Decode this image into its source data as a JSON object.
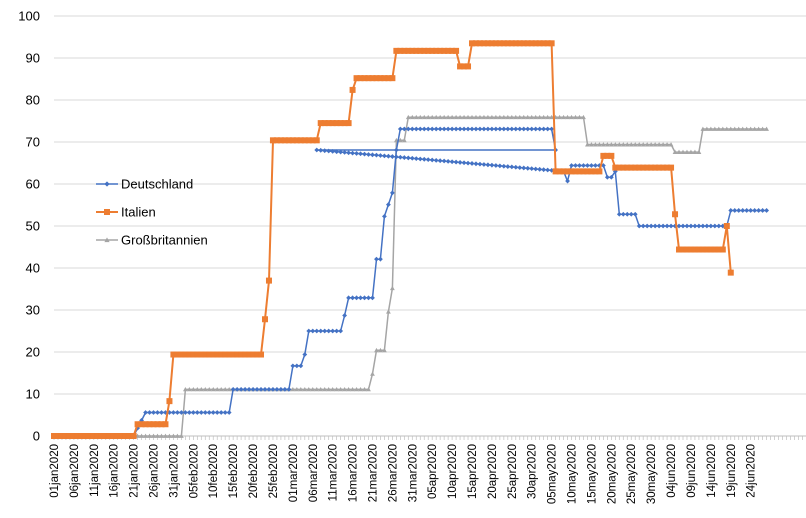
{
  "chart_data": {
    "type": "line",
    "title": "",
    "xlabel": "",
    "ylabel": "",
    "ylim": [
      0,
      100
    ],
    "yticks": [
      "0",
      "10",
      "20",
      "30",
      "40",
      "50",
      "60",
      "70",
      "80",
      "90",
      "100"
    ],
    "x_tick_labels": [
      "01jan2020",
      "06jan2020",
      "11jan2020",
      "16jan2020",
      "21jan2020",
      "26jan2020",
      "31jan2020",
      "05feb2020",
      "10feb2020",
      "15feb2020",
      "20feb2020",
      "25feb2020",
      "01mar2020",
      "06mar2020",
      "11mar2020",
      "16mar2020",
      "21mar2020",
      "26mar2020",
      "31mar2020",
      "05apr2020",
      "10apr2020",
      "15apr2020",
      "20apr2020",
      "25apr2020",
      "30apr2020",
      "05may2020",
      "10may2020",
      "15may2020",
      "20may2020",
      "25may2020",
      "30may2020",
      "04jun2020",
      "09jun2020",
      "14jun2020",
      "19jun2020",
      "24jun2020"
    ],
    "grid": "horizontal",
    "legend_position": "left-middle",
    "series": [
      {
        "name": "Deutschland",
        "color": "#4472C4",
        "marker": "diamond",
        "points": [
          [
            "01jan2020",
            0
          ],
          [
            "21jan2020",
            0
          ],
          [
            "24jan2020",
            5.6
          ],
          [
            "02feb2020",
            5.6
          ],
          [
            "14feb2020",
            5.6
          ],
          [
            "15feb2020",
            11.1
          ],
          [
            "29feb2020",
            11.1
          ],
          [
            "01mar2020",
            16.7
          ],
          [
            "03mar2020",
            16.7
          ],
          [
            "04mar2020",
            19.4
          ],
          [
            "05mar2020",
            25
          ],
          [
            "13mar2020",
            25
          ],
          [
            "14mar2020",
            28.7
          ],
          [
            "15mar2020",
            32.9
          ],
          [
            "21mar2020",
            32.9
          ],
          [
            "22mar2020",
            42.1
          ],
          [
            "23mar2020",
            42.1
          ],
          [
            "24mar2020",
            52.3
          ],
          [
            "25mar2020",
            55.1
          ],
          [
            "26mar2020",
            57.9
          ],
          [
            "27mar2020",
            68.1
          ],
          [
            "28mar2020",
            73.1
          ],
          [
            "05may2020",
            73.1
          ],
          [
            "06may2020",
            68.1
          ],
          [
            "07mar2020",
            68.1
          ],
          [
            "08may2020",
            63
          ],
          [
            "09may2020",
            60.7
          ],
          [
            "10may2020",
            64.4
          ],
          [
            "18may2020",
            64.4
          ],
          [
            "19may2020",
            61.6
          ],
          [
            "20may2020",
            61.6
          ],
          [
            "21may2020",
            63
          ],
          [
            "22may2020",
            52.8
          ],
          [
            "26may2020",
            52.8
          ],
          [
            "27may2020",
            50
          ],
          [
            "15jun2020",
            50
          ],
          [
            "16jun2020",
            50
          ],
          [
            "17jun2020",
            50
          ],
          [
            "18jun2020",
            50
          ],
          [
            "19jun2020",
            53.7
          ],
          [
            "28jun2020",
            53.7
          ]
        ]
      },
      {
        "name": "Italien",
        "color": "#ED7D31",
        "marker": "square",
        "points": [
          [
            "01jan2020",
            0
          ],
          [
            "21jan2020",
            0
          ],
          [
            "22jan2020",
            2.8
          ],
          [
            "29jan2020",
            2.8
          ],
          [
            "30jan2020",
            8.3
          ],
          [
            "31jan2020",
            19.4
          ],
          [
            "22feb2020",
            19.4
          ],
          [
            "23feb2020",
            27.8
          ],
          [
            "24feb2020",
            37
          ],
          [
            "25feb2020",
            70.4
          ],
          [
            "07mar2020",
            70.4
          ],
          [
            "08mar2020",
            74.5
          ],
          [
            "15mar2020",
            74.5
          ],
          [
            "16mar2020",
            82.4
          ],
          [
            "17mar2020",
            85.2
          ],
          [
            "26mar2020",
            85.2
          ],
          [
            "27mar2020",
            91.7
          ],
          [
            "11apr2020",
            91.7
          ],
          [
            "12apr2020",
            88
          ],
          [
            "14apr2020",
            88
          ],
          [
            "15apr2020",
            93.5
          ],
          [
            "05may2020",
            93.5
          ],
          [
            "06may2020",
            63
          ],
          [
            "17may2020",
            63
          ],
          [
            "18may2020",
            66.7
          ],
          [
            "20may2020",
            66.7
          ],
          [
            "21may2020",
            63.9
          ],
          [
            "04jun2020",
            63.9
          ],
          [
            "05jun2020",
            52.8
          ],
          [
            "06jun2020",
            44.4
          ],
          [
            "17jun2020",
            44.4
          ],
          [
            "18jun2020",
            50
          ],
          [
            "19jun2020",
            38.9
          ]
        ]
      },
      {
        "name": "Großbritannien",
        "color": "#A5A5A5",
        "marker": "triangle",
        "points": [
          [
            "01jan2020",
            0
          ],
          [
            "02feb2020",
            0
          ],
          [
            "03feb2020",
            11.1
          ],
          [
            "20mar2020",
            11.1
          ],
          [
            "21mar2020",
            14.8
          ],
          [
            "22mar2020",
            20.4
          ],
          [
            "24mar2020",
            20.4
          ],
          [
            "25mar2020",
            29.6
          ],
          [
            "26mar2020",
            35.2
          ],
          [
            "27mar2020",
            70.4
          ],
          [
            "29mar2020",
            70.4
          ],
          [
            "30mar2020",
            75.9
          ],
          [
            "13may2020",
            75.9
          ],
          [
            "14may2020",
            69.4
          ],
          [
            "04jun2020",
            69.4
          ],
          [
            "05jun2020",
            67.6
          ],
          [
            "11jun2020",
            67.6
          ],
          [
            "12jun2020",
            73.1
          ],
          [
            "28jun2020",
            73.1
          ]
        ]
      }
    ]
  }
}
